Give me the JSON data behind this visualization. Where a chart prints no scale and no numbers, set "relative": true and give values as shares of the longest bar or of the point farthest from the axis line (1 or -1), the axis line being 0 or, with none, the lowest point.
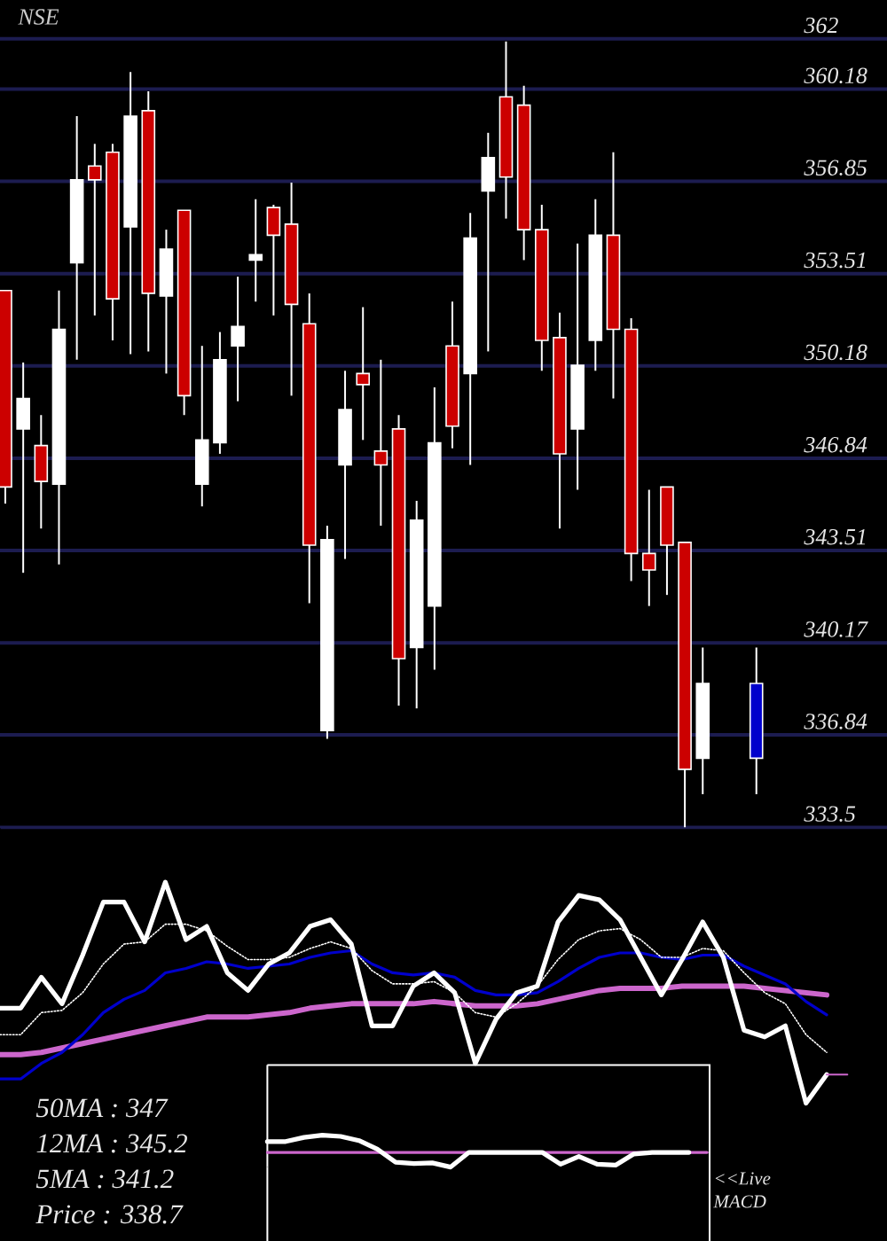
{
  "chart_data": [
    {
      "type": "candlestick",
      "title": "NSE",
      "grid": "y",
      "ylim": [
        333.5,
        363.4
      ],
      "yticks": [
        333.5,
        336.84,
        340.17,
        343.51,
        346.84,
        350.18,
        353.51,
        356.85,
        360.18,
        362
      ],
      "categories": [
        null,
        null,
        null,
        null,
        null,
        null,
        null,
        null,
        null,
        null,
        null,
        null,
        null,
        null,
        null,
        null,
        null,
        null,
        null,
        null,
        null,
        null,
        null,
        null,
        null,
        null,
        null,
        null,
        null,
        null,
        null,
        null,
        null,
        null,
        null,
        null,
        null,
        null,
        null,
        null,
        null,
        null,
        null
      ],
      "ohlc": [
        [
          352.9,
          352.9,
          345.2,
          345.8
        ],
        [
          347.9,
          350.3,
          342.7,
          349.0
        ],
        [
          347.3,
          348.4,
          344.3,
          346.0
        ],
        [
          345.9,
          352.9,
          343.0,
          351.5
        ],
        [
          353.9,
          359.2,
          350.4,
          356.9
        ],
        [
          357.4,
          358.2,
          352.0,
          356.9
        ],
        [
          357.9,
          358.2,
          351.1,
          352.6
        ],
        [
          355.2,
          360.8,
          350.6,
          359.2
        ],
        [
          359.4,
          360.1,
          350.7,
          352.8
        ],
        [
          352.7,
          355.1,
          349.9,
          354.4
        ],
        [
          355.8,
          355.8,
          348.4,
          349.1
        ],
        [
          345.9,
          350.9,
          345.1,
          347.5
        ],
        [
          347.4,
          351.4,
          347.0,
          350.4
        ],
        [
          350.9,
          353.4,
          348.9,
          351.6
        ],
        [
          354.0,
          356.2,
          352.5,
          354.2
        ],
        [
          355.9,
          356.0,
          352.0,
          354.9
        ],
        [
          355.3,
          356.8,
          349.1,
          352.4
        ],
        [
          351.7,
          352.8,
          341.6,
          343.7
        ],
        [
          337.0,
          344.4,
          336.7,
          343.9
        ],
        [
          346.6,
          350.0,
          343.2,
          348.6
        ],
        [
          349.9,
          352.3,
          347.5,
          349.5
        ],
        [
          347.1,
          350.4,
          344.4,
          346.6
        ],
        [
          347.9,
          348.4,
          337.9,
          339.6
        ],
        [
          340.0,
          345.3,
          337.8,
          344.6
        ],
        [
          341.5,
          349.4,
          339.2,
          347.4
        ],
        [
          350.9,
          352.5,
          347.2,
          348.0
        ],
        [
          349.9,
          355.7,
          346.6,
          354.8
        ],
        [
          356.5,
          358.6,
          350.7,
          357.7
        ],
        [
          359.9,
          361.9,
          355.5,
          357.0
        ],
        [
          359.6,
          360.3,
          354.0,
          355.1
        ],
        [
          355.1,
          356.0,
          350.0,
          351.1
        ],
        [
          351.2,
          352.1,
          344.3,
          347.0
        ],
        [
          347.9,
          354.6,
          345.7,
          350.2
        ],
        [
          351.1,
          356.2,
          350.0,
          354.9
        ],
        [
          354.9,
          357.9,
          349.0,
          351.5
        ],
        [
          351.5,
          351.9,
          342.4,
          343.4
        ],
        [
          343.4,
          345.7,
          341.5,
          342.8
        ],
        [
          345.8,
          345.8,
          341.9,
          343.7
        ],
        [
          343.8,
          343.8,
          333.5,
          335.6
        ],
        [
          336.0,
          340.0,
          334.7,
          338.7
        ],
        null,
        null,
        [
          336.0,
          340.0,
          334.7,
          338.7
        ]
      ],
      "colors": [
        "#cc0000",
        "#ffffff",
        "#cc0000",
        "#ffffff",
        "#ffffff",
        "#cc0000",
        "#cc0000",
        "#ffffff",
        "#cc0000",
        "#ffffff",
        "#cc0000",
        "#ffffff",
        "#ffffff",
        "#ffffff",
        "#ffffff",
        "#cc0000",
        "#cc0000",
        "#cc0000",
        "#ffffff",
        "#ffffff",
        "#cc0000",
        "#cc0000",
        "#cc0000",
        "#ffffff",
        "#ffffff",
        "#cc0000",
        "#ffffff",
        "#ffffff",
        "#cc0000",
        "#cc0000",
        "#cc0000",
        "#cc0000",
        "#ffffff",
        "#ffffff",
        "#cc0000",
        "#cc0000",
        "#cc0000",
        "#cc0000",
        "#cc0000",
        "#ffffff",
        null,
        null,
        "#0000cc"
      ]
    },
    {
      "type": "line",
      "relative": true,
      "categories": [
        null,
        null,
        null,
        null,
        null,
        null,
        null,
        null,
        null,
        null,
        null,
        null,
        null,
        null,
        null,
        null,
        null,
        null,
        null,
        null,
        null,
        null,
        null,
        null,
        null,
        null,
        null,
        null,
        null,
        null,
        null,
        null,
        null,
        null,
        null,
        null,
        null,
        null,
        null,
        null,
        null,
        null
      ],
      "series": [
        {
          "color": "#cc66cc",
          "values": [
            0.22,
            0.22,
            0.23,
            0.25,
            0.27,
            0.29,
            0.31,
            0.33,
            0.35,
            0.37,
            0.39,
            0.39,
            0.39,
            0.4,
            0.41,
            0.43,
            0.44,
            0.45,
            0.45,
            0.45,
            0.45,
            0.46,
            0.45,
            0.44,
            0.44,
            0.44,
            0.45,
            0.47,
            0.49,
            0.51,
            0.52,
            0.52,
            0.52,
            0.53,
            0.53,
            0.53,
            0.53,
            0.52,
            0.51,
            0.5,
            0.49,
            null
          ]
        },
        {
          "color": "#0000cc",
          "values": [
            0.11,
            0.11,
            0.18,
            0.23,
            0.31,
            0.41,
            0.47,
            0.51,
            0.59,
            0.61,
            0.64,
            0.63,
            0.61,
            0.62,
            0.63,
            0.66,
            0.68,
            0.69,
            0.63,
            0.59,
            0.58,
            0.59,
            0.57,
            0.51,
            0.49,
            0.49,
            0.5,
            0.55,
            0.61,
            0.66,
            0.68,
            0.68,
            0.66,
            0.65,
            0.67,
            0.67,
            0.62,
            0.58,
            0.54,
            0.46,
            0.4,
            null
          ]
        },
        {
          "color": "#ffffff",
          "line_style": "dotted",
          "values": [
            0.31,
            0.31,
            0.41,
            0.42,
            0.5,
            0.63,
            0.72,
            0.73,
            0.81,
            0.81,
            0.78,
            0.71,
            0.65,
            0.65,
            0.66,
            0.7,
            0.73,
            0.7,
            0.6,
            0.54,
            0.54,
            0.55,
            0.5,
            0.41,
            0.39,
            0.45,
            0.53,
            0.65,
            0.74,
            0.78,
            0.79,
            0.74,
            0.66,
            0.66,
            0.7,
            0.69,
            0.59,
            0.5,
            0.45,
            0.31,
            0.23,
            null
          ]
        },
        {
          "color": "#ffffff",
          "values": [
            0.43,
            0.43,
            0.57,
            0.45,
            0.67,
            0.91,
            0.91,
            0.73,
            1,
            0.74,
            0.8,
            0.59,
            0.51,
            0.63,
            0.68,
            0.8,
            0.83,
            0.72,
            0.35,
            0.35,
            0.53,
            0.59,
            0.5,
            0.18,
            0.38,
            0.5,
            0.53,
            0.82,
            0.94,
            0.92,
            0.83,
            0.66,
            0.49,
            0.65,
            0.82,
            0.66,
            0.33,
            0.3,
            0.35,
            0,
            0.13,
            null
          ]
        },
        {
          "color": "#cc66cc",
          "values": [
            null,
            null,
            null,
            null,
            null,
            null,
            null,
            null,
            null,
            null,
            null,
            null,
            null,
            null,
            null,
            null,
            null,
            null,
            null,
            null,
            null,
            null,
            null,
            null,
            null,
            null,
            null,
            null,
            null,
            null,
            null,
            null,
            null,
            null,
            null,
            null,
            null,
            null,
            null,
            null,
            0.13,
            0.13
          ]
        }
      ],
      "annotations": [
        "50MA : 347",
        "12MA : 345.2",
        "5MA : 341.2",
        "Price : 338.7"
      ]
    },
    {
      "type": "line",
      "relative": true,
      "categories": [
        null,
        null,
        null,
        null,
        null,
        null,
        null,
        null,
        null,
        null,
        null,
        null,
        null,
        null,
        null,
        null,
        null,
        null,
        null,
        null,
        null,
        null,
        null,
        null,
        null
      ],
      "series": [
        {
          "color": "#cc66cc",
          "values": [
            0.46,
            0.46,
            0.46,
            0.46,
            0.46,
            0.46,
            0.46,
            0.46,
            0.46,
            0.46,
            0.46,
            0.46,
            0.46,
            0.46,
            0.46,
            0.46,
            0.46,
            0.46,
            0.46,
            0.46,
            0.46,
            0.46,
            0.46,
            0.46,
            0.46
          ]
        },
        {
          "color": "#ffffff",
          "values": [
            0.8,
            0.8,
            0.93,
            1,
            0.96,
            0.83,
            0.56,
            0.15,
            0.11,
            0.13,
            0,
            0.46,
            0.46,
            0.46,
            0.46,
            0.46,
            0.09,
            0.33,
            0.09,
            0.06,
            0.41,
            0.46,
            0.46,
            0.46,
            null
          ]
        }
      ],
      "annotations": [
        "<<Live MACD"
      ]
    }
  ]
}
